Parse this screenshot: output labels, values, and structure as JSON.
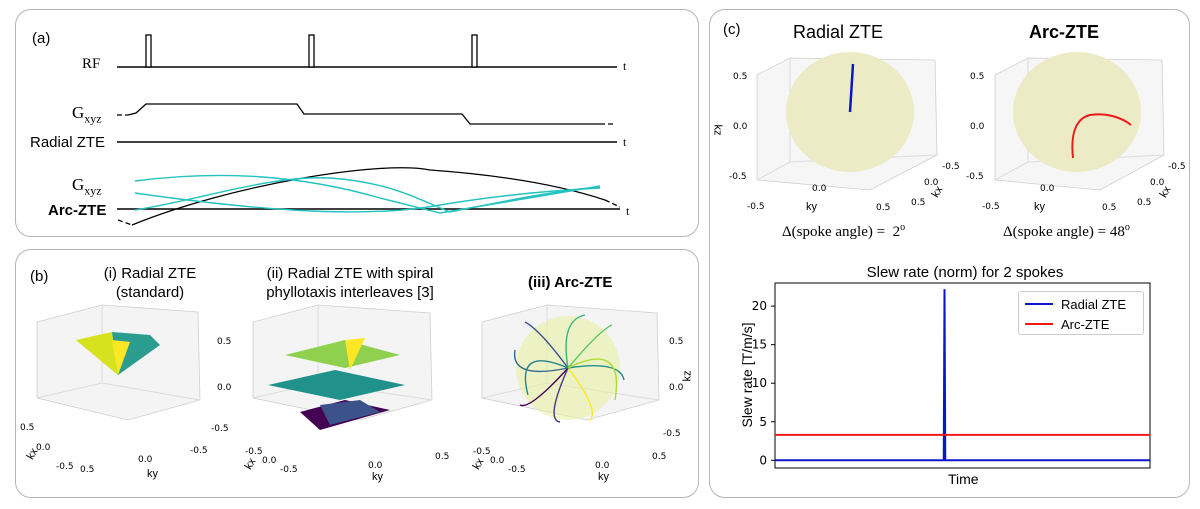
{
  "panels": {
    "a": {
      "label": "(a)",
      "rows": {
        "rf": "RF",
        "gxyz_top": "G",
        "gxyz_sub": "xyz",
        "radial": "Radial ZTE",
        "gxyz2": "G",
        "gxyz2_sub": "xyz",
        "arc": "Arc-ZTE"
      },
      "time_marker": "t"
    },
    "b": {
      "label": "(b)",
      "titles": {
        "i_line1": "(i) Radial ZTE",
        "i_line2": "(standard)",
        "ii_line1": "(ii)  Radial ZTE with spiral",
        "ii_line2": "phyllotaxis interleaves [3]",
        "iii": "(iii)  Arc-ZTE"
      },
      "axis": {
        "kx": "kx",
        "ky": "ky",
        "kz": "kz",
        "ticks": [
          "0.5",
          "0.0",
          "-0.5"
        ]
      }
    },
    "c": {
      "label": "(c)",
      "titles": {
        "radial": "Radial ZTE",
        "arc": "Arc-ZTE"
      },
      "axis": {
        "kx": "kx",
        "ky": "ky",
        "kz": "kz",
        "ticks": [
          "0.5",
          "0.0",
          "-0.5"
        ]
      },
      "captions": {
        "radial_prefix": "Δ(spoke angle) =",
        "radial_val": "2",
        "radial_sup": "o",
        "arc_prefix": "Δ(spoke angle) =",
        "arc_val": "48",
        "arc_sup": "o"
      }
    }
  },
  "chart_data": {
    "type": "line",
    "title": "Slew rate (norm) for 2 spokes",
    "xlabel": "Time",
    "ylabel": "Slew rate [T/m/s]",
    "ylim": [
      -1,
      23
    ],
    "yticks": [
      0,
      5,
      10,
      15,
      20
    ],
    "x": [
      0,
      0.45,
      0.452,
      0.454,
      1
    ],
    "series": [
      {
        "name": "Radial ZTE",
        "color": "#0a16c8",
        "values": [
          0,
          0,
          22.2,
          0,
          0
        ]
      },
      {
        "name": "Arc-ZTE",
        "color": "#ee1a1a",
        "values": [
          3.3,
          3.3,
          3.3,
          3.3,
          3.3
        ]
      }
    ],
    "legend_position": "top-right",
    "grid": false
  },
  "colors": {
    "cyan": "#22c3c0",
    "blue": "#0a16c8",
    "red": "#ee1a1a",
    "sphere": "#ecebc6"
  }
}
